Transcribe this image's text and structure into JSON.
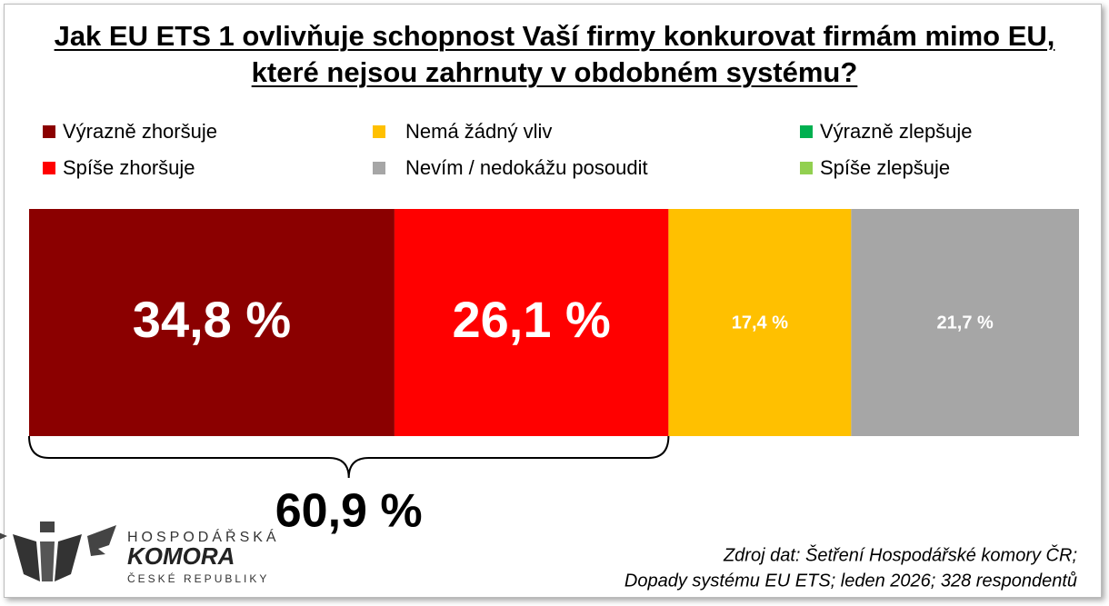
{
  "chart_data": {
    "type": "stacked-bar-100",
    "title": "Jak EU ETS 1 ovlivňuje schopnost Vaší firmy konkurovat firmám mimo EU, které nejsou zahrnuty v obdobném systému?",
    "xlim": [
      0,
      100
    ],
    "series": [
      {
        "name": "Výrazně zhoršuje",
        "color": "#8b0000",
        "values": [
          34.8
        ],
        "value_labels": [
          "34,8 %"
        ]
      },
      {
        "name": "Spíše zhoršuje",
        "color": "#ff0000",
        "values": [
          26.1
        ],
        "value_labels": [
          "26,1 %"
        ]
      },
      {
        "name": "Nemá žádný vliv",
        "color": "#ffc000",
        "values": [
          17.4
        ],
        "value_labels": [
          "17,4 %"
        ]
      },
      {
        "name": "Nevím / nedokážu posoudit",
        "color": "#a6a6a6",
        "values": [
          21.7
        ],
        "value_labels": [
          "21,7 %"
        ]
      },
      {
        "name": "Výrazně zlepšuje",
        "color": "#00b050",
        "values": [
          0
        ]
      },
      {
        "name": "Spíše zlepšuje",
        "color": "#92d050",
        "values": [
          0
        ]
      }
    ],
    "annotations": [
      {
        "value": 60.9,
        "label": "60,9 %"
      }
    ],
    "source": [
      "Zdroj dat: Šetření Hospodářské komory ČR;",
      "Dopady systému EU ETS; leden 2026; 328 respondentů"
    ],
    "logo": {
      "line1": "HOSPODÁŘSKÁ",
      "line2": "KOMORA",
      "line3": "ČESKÉ REPUBLIKY"
    }
  }
}
